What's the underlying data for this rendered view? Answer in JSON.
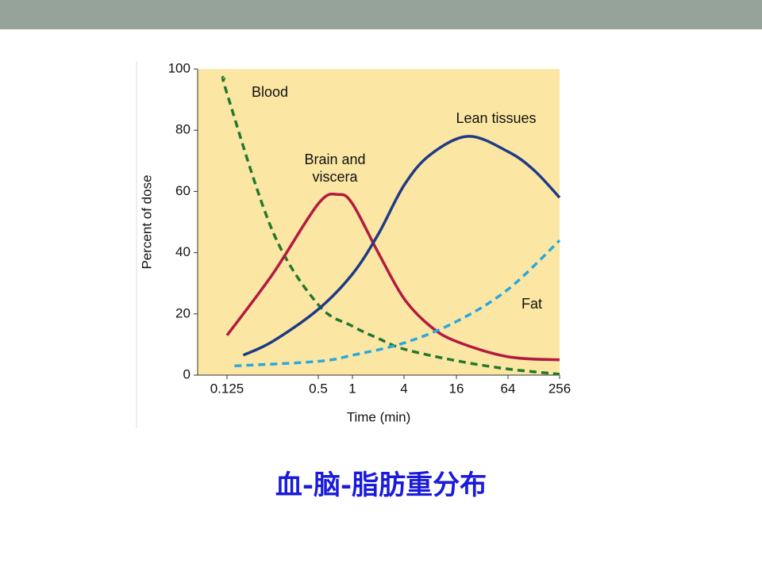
{
  "slide": {
    "caption": "血-脑-脂肪重分布"
  },
  "chart_data": {
    "type": "line",
    "xlabel": "Time (min)",
    "ylabel": "Percent of dose",
    "xscale": "log",
    "xlim": [
      0.08,
      256
    ],
    "xticks": [
      0.125,
      0.5,
      1,
      4,
      16,
      64,
      256
    ],
    "ylim": [
      0,
      100
    ],
    "yticks": [
      0,
      20,
      40,
      60,
      80,
      100
    ],
    "background": "#fbe7a3",
    "series": [
      {
        "name": "Blood",
        "color": "#24782e",
        "dashed": true,
        "x": [
          0.12,
          0.125,
          0.25,
          0.5,
          1,
          2,
          4,
          16,
          64,
          256
        ],
        "values": [
          97,
          92,
          47,
          23,
          16,
          12,
          8.5,
          4.7,
          2,
          0.3
        ]
      },
      {
        "name": "Brain and viscera",
        "color": "#b31a40",
        "dashed": false,
        "x": [
          0.125,
          0.25,
          0.5,
          0.75,
          1,
          2,
          4,
          8,
          16,
          64,
          256
        ],
        "values": [
          13,
          33,
          56,
          59,
          56,
          40,
          25,
          16,
          11,
          6,
          5
        ]
      },
      {
        "name": "Lean tissues",
        "color": "#1f3a86",
        "dashed": false,
        "x": [
          0.16,
          0.25,
          0.5,
          1,
          2,
          4,
          8,
          22,
          64,
          128,
          256
        ],
        "values": [
          6.5,
          11,
          21.5,
          33,
          46,
          62,
          72,
          78,
          73,
          67,
          58
        ]
      },
      {
        "name": "Fat",
        "color": "#2aa8df",
        "dashed": true,
        "x": [
          0.14,
          0.5,
          1,
          4,
          16,
          64,
          256
        ],
        "values": [
          3,
          4.5,
          6.5,
          10.5,
          17.5,
          28,
          44
        ]
      }
    ]
  }
}
